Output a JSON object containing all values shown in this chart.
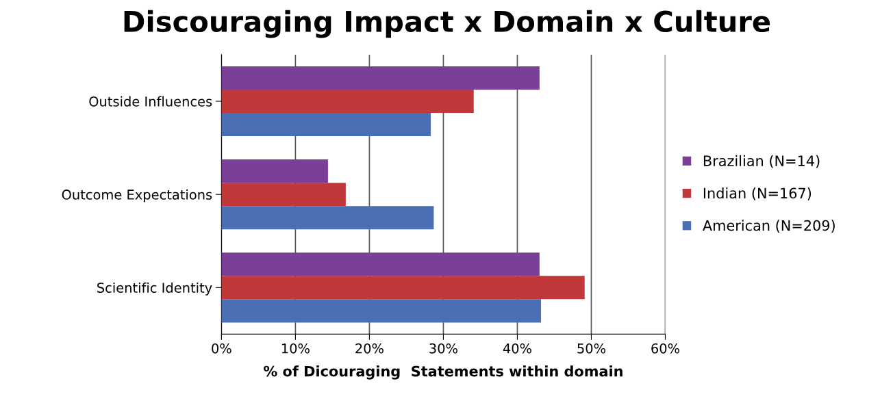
{
  "chart_data": {
    "type": "bar",
    "orientation": "horizontal",
    "title": "Discouraging Impact x Domain x Culture",
    "xlabel": "% of Dicouraging  Statements within domain",
    "categories": [
      "Outside Influences",
      "Outcome Expectations",
      "Scientific Identity"
    ],
    "series": [
      {
        "name": "Brazilian (N=14)",
        "color": "#7b3f9a",
        "values": [
          43.0,
          14.4,
          43.0
        ]
      },
      {
        "name": "Indian (N=167)",
        "color": "#c0383a",
        "values": [
          34.1,
          16.8,
          49.1
        ]
      },
      {
        "name": "American (N=209)",
        "color": "#4a6fb5",
        "values": [
          28.3,
          28.7,
          43.2
        ]
      }
    ],
    "xlim": [
      0,
      60
    ],
    "xticks": [
      {
        "value": 0,
        "label": "0%"
      },
      {
        "value": 10,
        "label": "10%"
      },
      {
        "value": 20,
        "label": "20%"
      },
      {
        "value": 30,
        "label": "30%"
      },
      {
        "value": 40,
        "label": "40%"
      },
      {
        "value": 50,
        "label": "50%"
      },
      {
        "value": 60,
        "label": "60%"
      }
    ],
    "grid": "x",
    "legend": "right"
  }
}
